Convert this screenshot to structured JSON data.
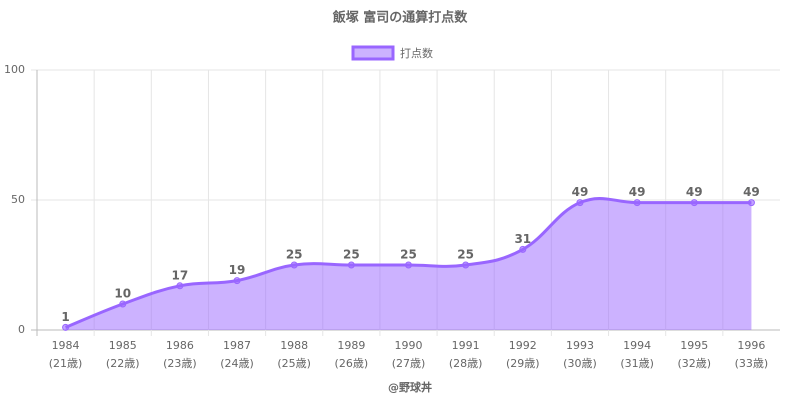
{
  "chart_data": {
    "type": "line",
    "title": "飯塚 富司の通算打点数",
    "categories": [
      "1984",
      "1985",
      "1986",
      "1987",
      "1988",
      "1989",
      "1990",
      "1991",
      "1992",
      "1993",
      "1994",
      "1995",
      "1996"
    ],
    "ages": [
      "(21歳)",
      "(22歳)",
      "(23歳)",
      "(24歳)",
      "(25歳)",
      "(26歳)",
      "(27歳)",
      "(28歳)",
      "(29歳)",
      "(30歳)",
      "(31歳)",
      "(32歳)",
      "(33歳)"
    ],
    "series": [
      {
        "name": "打点数",
        "color": "#9966ff",
        "values": [
          1,
          10,
          17,
          19,
          25,
          25,
          25,
          25,
          31,
          49,
          49,
          49,
          49
        ]
      }
    ],
    "ylim": [
      0,
      100
    ],
    "yticks": [
      0,
      50,
      100
    ],
    "grid": true,
    "fill": true,
    "legend": "top",
    "footer": "@野球丼"
  }
}
